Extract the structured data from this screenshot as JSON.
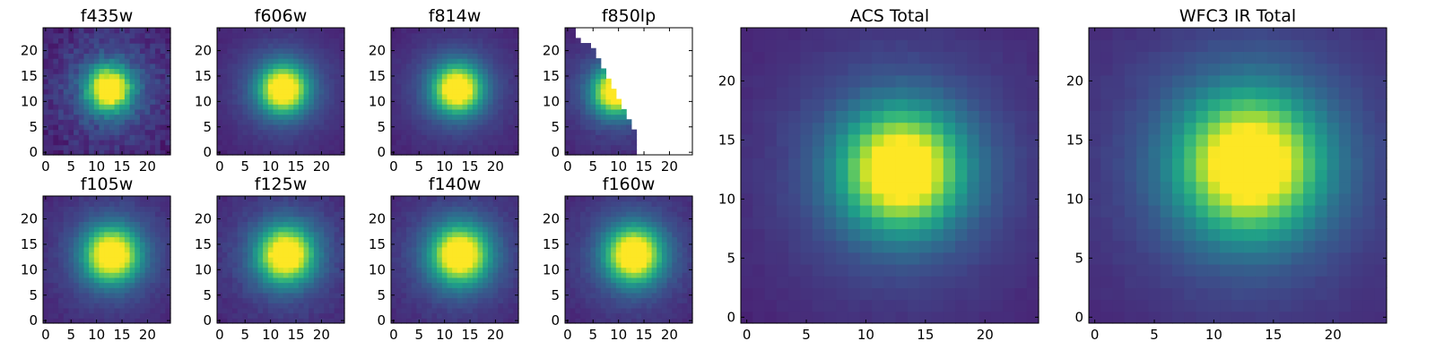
{
  "chart_data": [
    {
      "type": "heatmap",
      "title": "f435w",
      "xticks": [
        "0",
        "5",
        "10",
        "15",
        "20"
      ],
      "yticks": [
        "0",
        "5",
        "10",
        "15",
        "20"
      ],
      "xlim": [
        -0.5,
        24.5
      ],
      "ylim": [
        -0.5,
        24.5
      ],
      "grid": false,
      "colormap": "viridis",
      "peak": {
        "x": 12.5,
        "y": 12.5
      },
      "sigma": 3.0,
      "noise": 0.12
    },
    {
      "type": "heatmap",
      "title": "f606w",
      "xticks": [
        "0",
        "5",
        "10",
        "15",
        "20"
      ],
      "yticks": [
        "0",
        "5",
        "10",
        "15",
        "20"
      ],
      "xlim": [
        -0.5,
        24.5
      ],
      "ylim": [
        -0.5,
        24.5
      ],
      "grid": false,
      "colormap": "viridis",
      "peak": {
        "x": 12.5,
        "y": 12.5
      },
      "sigma": 3.2,
      "noise": 0.03
    },
    {
      "type": "heatmap",
      "title": "f814w",
      "xticks": [
        "0",
        "5",
        "10",
        "15",
        "20"
      ],
      "yticks": [
        "0",
        "5",
        "10",
        "15",
        "20"
      ],
      "xlim": [
        -0.5,
        24.5
      ],
      "ylim": [
        -0.5,
        24.5
      ],
      "grid": false,
      "colormap": "viridis",
      "peak": {
        "x": 12.5,
        "y": 12.5
      },
      "sigma": 3.2,
      "noise": 0.03
    },
    {
      "type": "heatmap",
      "title": "f850lp",
      "xticks": [
        "0",
        "5",
        "10",
        "15",
        "20"
      ],
      "yticks": [
        "0",
        "5",
        "10",
        "15",
        "20"
      ],
      "xlim": [
        -0.5,
        24.5
      ],
      "ylim": [
        -0.5,
        24.5
      ],
      "grid": false,
      "colormap": "viridis",
      "peak": {
        "x": 9.5,
        "y": 12
      },
      "sigma": 3.0,
      "noise": 0.04,
      "masked": true
    },
    {
      "type": "heatmap",
      "title": "f105w",
      "xticks": [
        "0",
        "5",
        "10",
        "15",
        "20"
      ],
      "yticks": [
        "0",
        "5",
        "10",
        "15",
        "20"
      ],
      "xlim": [
        -0.5,
        24.5
      ],
      "ylim": [
        -0.5,
        24.5
      ],
      "grid": false,
      "colormap": "viridis",
      "peak": {
        "x": 13,
        "y": 13
      },
      "sigma": 3.6,
      "noise": 0.04
    },
    {
      "type": "heatmap",
      "title": "f125w",
      "xticks": [
        "0",
        "5",
        "10",
        "15",
        "20"
      ],
      "yticks": [
        "0",
        "5",
        "10",
        "15",
        "20"
      ],
      "xlim": [
        -0.5,
        24.5
      ],
      "ylim": [
        -0.5,
        24.5
      ],
      "grid": false,
      "colormap": "viridis",
      "peak": {
        "x": 13,
        "y": 13
      },
      "sigma": 3.7,
      "noise": 0.05
    },
    {
      "type": "heatmap",
      "title": "f140w",
      "xticks": [
        "0",
        "5",
        "10",
        "15",
        "20"
      ],
      "yticks": [
        "0",
        "5",
        "10",
        "15",
        "20"
      ],
      "xlim": [
        -0.5,
        24.5
      ],
      "ylim": [
        -0.5,
        24.5
      ],
      "grid": false,
      "colormap": "viridis",
      "peak": {
        "x": 13,
        "y": 13
      },
      "sigma": 3.8,
      "noise": 0.04
    },
    {
      "type": "heatmap",
      "title": "f160w",
      "xticks": [
        "0",
        "5",
        "10",
        "15",
        "20"
      ],
      "yticks": [
        "0",
        "5",
        "10",
        "15",
        "20"
      ],
      "xlim": [
        -0.5,
        24.5
      ],
      "ylim": [
        -0.5,
        24.5
      ],
      "grid": false,
      "colormap": "viridis",
      "peak": {
        "x": 13,
        "y": 13
      },
      "sigma": 3.7,
      "noise": 0.04
    },
    {
      "type": "heatmap",
      "title": "ACS Total",
      "xticks": [
        "0",
        "5",
        "10",
        "15",
        "20"
      ],
      "yticks": [
        "0",
        "5",
        "10",
        "15",
        "20"
      ],
      "xlim": [
        -0.5,
        24.5
      ],
      "ylim": [
        -0.5,
        24.5
      ],
      "grid": false,
      "colormap": "viridis",
      "peak": {
        "x": 13,
        "y": 12.5
      },
      "sigma": 3.4,
      "noise": 0.02
    },
    {
      "type": "heatmap",
      "title": "WFC3 IR Total",
      "xticks": [
        "0",
        "5",
        "10",
        "15",
        "20"
      ],
      "yticks": [
        "0",
        "5",
        "10",
        "15",
        "20"
      ],
      "xlim": [
        -0.5,
        24.5
      ],
      "ylim": [
        -0.5,
        24.5
      ],
      "grid": false,
      "colormap": "viridis",
      "peak": {
        "x": 13,
        "y": 13
      },
      "sigma": 4.0,
      "noise": 0.02
    }
  ]
}
